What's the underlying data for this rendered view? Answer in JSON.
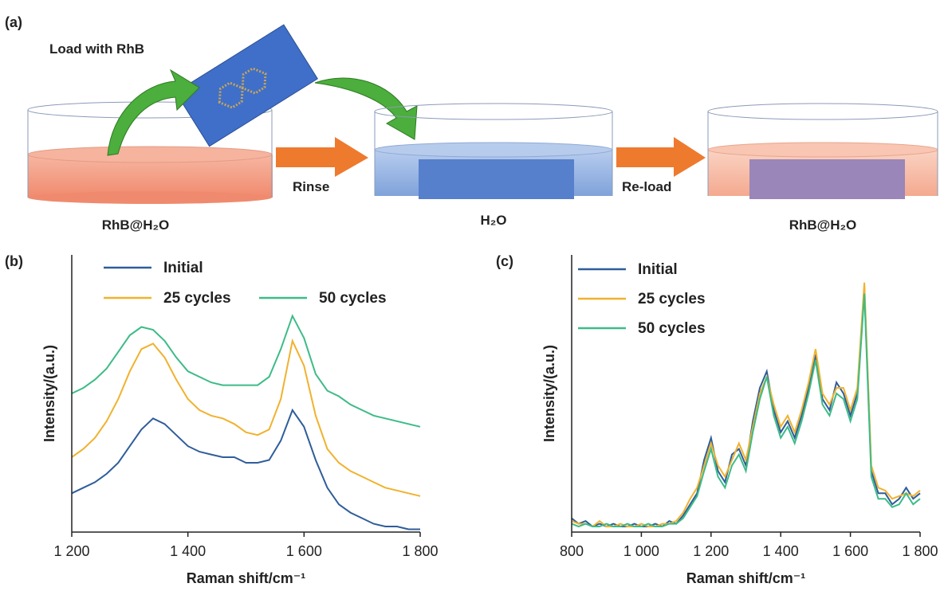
{
  "diagram": {
    "panel": "(a)",
    "load_label": "Load with RhB",
    "rinse_label": "Rinse",
    "reload_label": "Re-load",
    "dish_labels": [
      "RhB@H₂O",
      "H₂O",
      "RhB@H₂O"
    ]
  },
  "chart_data": [
    {
      "type": "line",
      "panel": "(b)",
      "x_label": "Raman shift/cm⁻¹",
      "y_label": "Intensity/(a.u.)",
      "legend": "top",
      "x": [
        1200,
        1220,
        1240,
        1260,
        1280,
        1300,
        1320,
        1340,
        1360,
        1380,
        1400,
        1420,
        1440,
        1460,
        1480,
        1500,
        1520,
        1540,
        1560,
        1580,
        1600,
        1620,
        1640,
        1660,
        1680,
        1700,
        1720,
        1740,
        1760,
        1780,
        1800
      ],
      "xlim": [
        1200,
        1800
      ],
      "xticks": [
        {
          "value": 1200,
          "label": "1 200"
        },
        {
          "value": 1400,
          "label": "1 400"
        },
        {
          "value": 1600,
          "label": "1 600"
        },
        {
          "value": 1800,
          "label": "1 800"
        }
      ],
      "ylim": [
        0,
        100
      ],
      "series": [
        {
          "name": "Initial",
          "color": "#2f5d9a",
          "values": [
            14,
            16,
            18,
            21,
            25,
            31,
            37,
            41,
            39,
            35,
            31,
            29,
            28,
            27,
            27,
            25,
            25,
            26,
            33,
            44,
            38,
            26,
            16,
            10,
            7,
            5,
            3,
            2,
            2,
            1,
            1
          ]
        },
        {
          "name": "25 cycles",
          "color": "#f0b22e",
          "values": [
            27,
            30,
            34,
            40,
            48,
            58,
            66,
            68,
            63,
            55,
            48,
            44,
            42,
            41,
            39,
            36,
            35,
            37,
            48,
            69,
            60,
            42,
            30,
            25,
            22,
            20,
            18,
            16,
            15,
            14,
            13
          ]
        },
        {
          "name": "50 cycles",
          "color": "#3dbb88",
          "values": [
            50,
            52,
            55,
            59,
            65,
            71,
            74,
            73,
            69,
            63,
            58,
            56,
            54,
            53,
            53,
            53,
            53,
            56,
            66,
            78,
            70,
            57,
            51,
            49,
            46,
            44,
            42,
            41,
            40,
            39,
            38
          ]
        }
      ]
    },
    {
      "type": "line",
      "panel": "(c)",
      "x_label": "Raman shift/cm⁻¹",
      "y_label": "Intensity/(a.u.)",
      "legend": "top-left",
      "x": [
        800,
        820,
        840,
        860,
        880,
        900,
        920,
        940,
        960,
        980,
        1000,
        1020,
        1040,
        1060,
        1080,
        1100,
        1120,
        1140,
        1160,
        1180,
        1200,
        1220,
        1240,
        1260,
        1280,
        1300,
        1320,
        1340,
        1360,
        1380,
        1400,
        1420,
        1440,
        1460,
        1480,
        1500,
        1520,
        1540,
        1560,
        1580,
        1600,
        1620,
        1640,
        1660,
        1680,
        1700,
        1720,
        1740,
        1760,
        1780,
        1800
      ],
      "xlim": [
        800,
        1800
      ],
      "xticks": [
        800,
        {
          "value": 1000,
          "label": "1 000"
        },
        {
          "value": 1200,
          "label": "1 200"
        },
        {
          "value": 1400,
          "label": "1 400"
        },
        {
          "value": 1600,
          "label": "1 600"
        },
        {
          "value": 1800,
          "label": "1 800"
        }
      ],
      "ylim": [
        0,
        100
      ],
      "series": [
        {
          "name": "Initial",
          "color": "#2f5d9a",
          "values": [
            5,
            3,
            4,
            2,
            3,
            2,
            3,
            2,
            2,
            3,
            2,
            2,
            3,
            2,
            4,
            3,
            6,
            10,
            14,
            26,
            34,
            22,
            18,
            28,
            30,
            24,
            40,
            52,
            58,
            44,
            36,
            40,
            34,
            42,
            52,
            64,
            48,
            44,
            54,
            50,
            42,
            50,
            88,
            22,
            14,
            14,
            10,
            12,
            16,
            12,
            14
          ]
        },
        {
          "name": "25 cycles",
          "color": "#f0b22e",
          "values": [
            4,
            3,
            3,
            2,
            4,
            2,
            2,
            3,
            2,
            2,
            3,
            2,
            2,
            3,
            3,
            4,
            7,
            12,
            16,
            24,
            32,
            24,
            20,
            26,
            32,
            26,
            38,
            50,
            56,
            46,
            38,
            42,
            36,
            44,
            54,
            66,
            50,
            46,
            52,
            52,
            44,
            52,
            90,
            24,
            16,
            15,
            12,
            13,
            14,
            13,
            15
          ]
        },
        {
          "name": "50 cycles",
          "color": "#3dbb88",
          "values": [
            3,
            2,
            3,
            2,
            2,
            3,
            2,
            2,
            3,
            2,
            2,
            3,
            2,
            2,
            3,
            3,
            5,
            9,
            13,
            22,
            30,
            20,
            16,
            24,
            28,
            22,
            36,
            48,
            56,
            42,
            34,
            38,
            32,
            40,
            50,
            62,
            46,
            42,
            50,
            48,
            40,
            48,
            86,
            20,
            12,
            12,
            9,
            10,
            14,
            10,
            12
          ]
        }
      ]
    }
  ]
}
